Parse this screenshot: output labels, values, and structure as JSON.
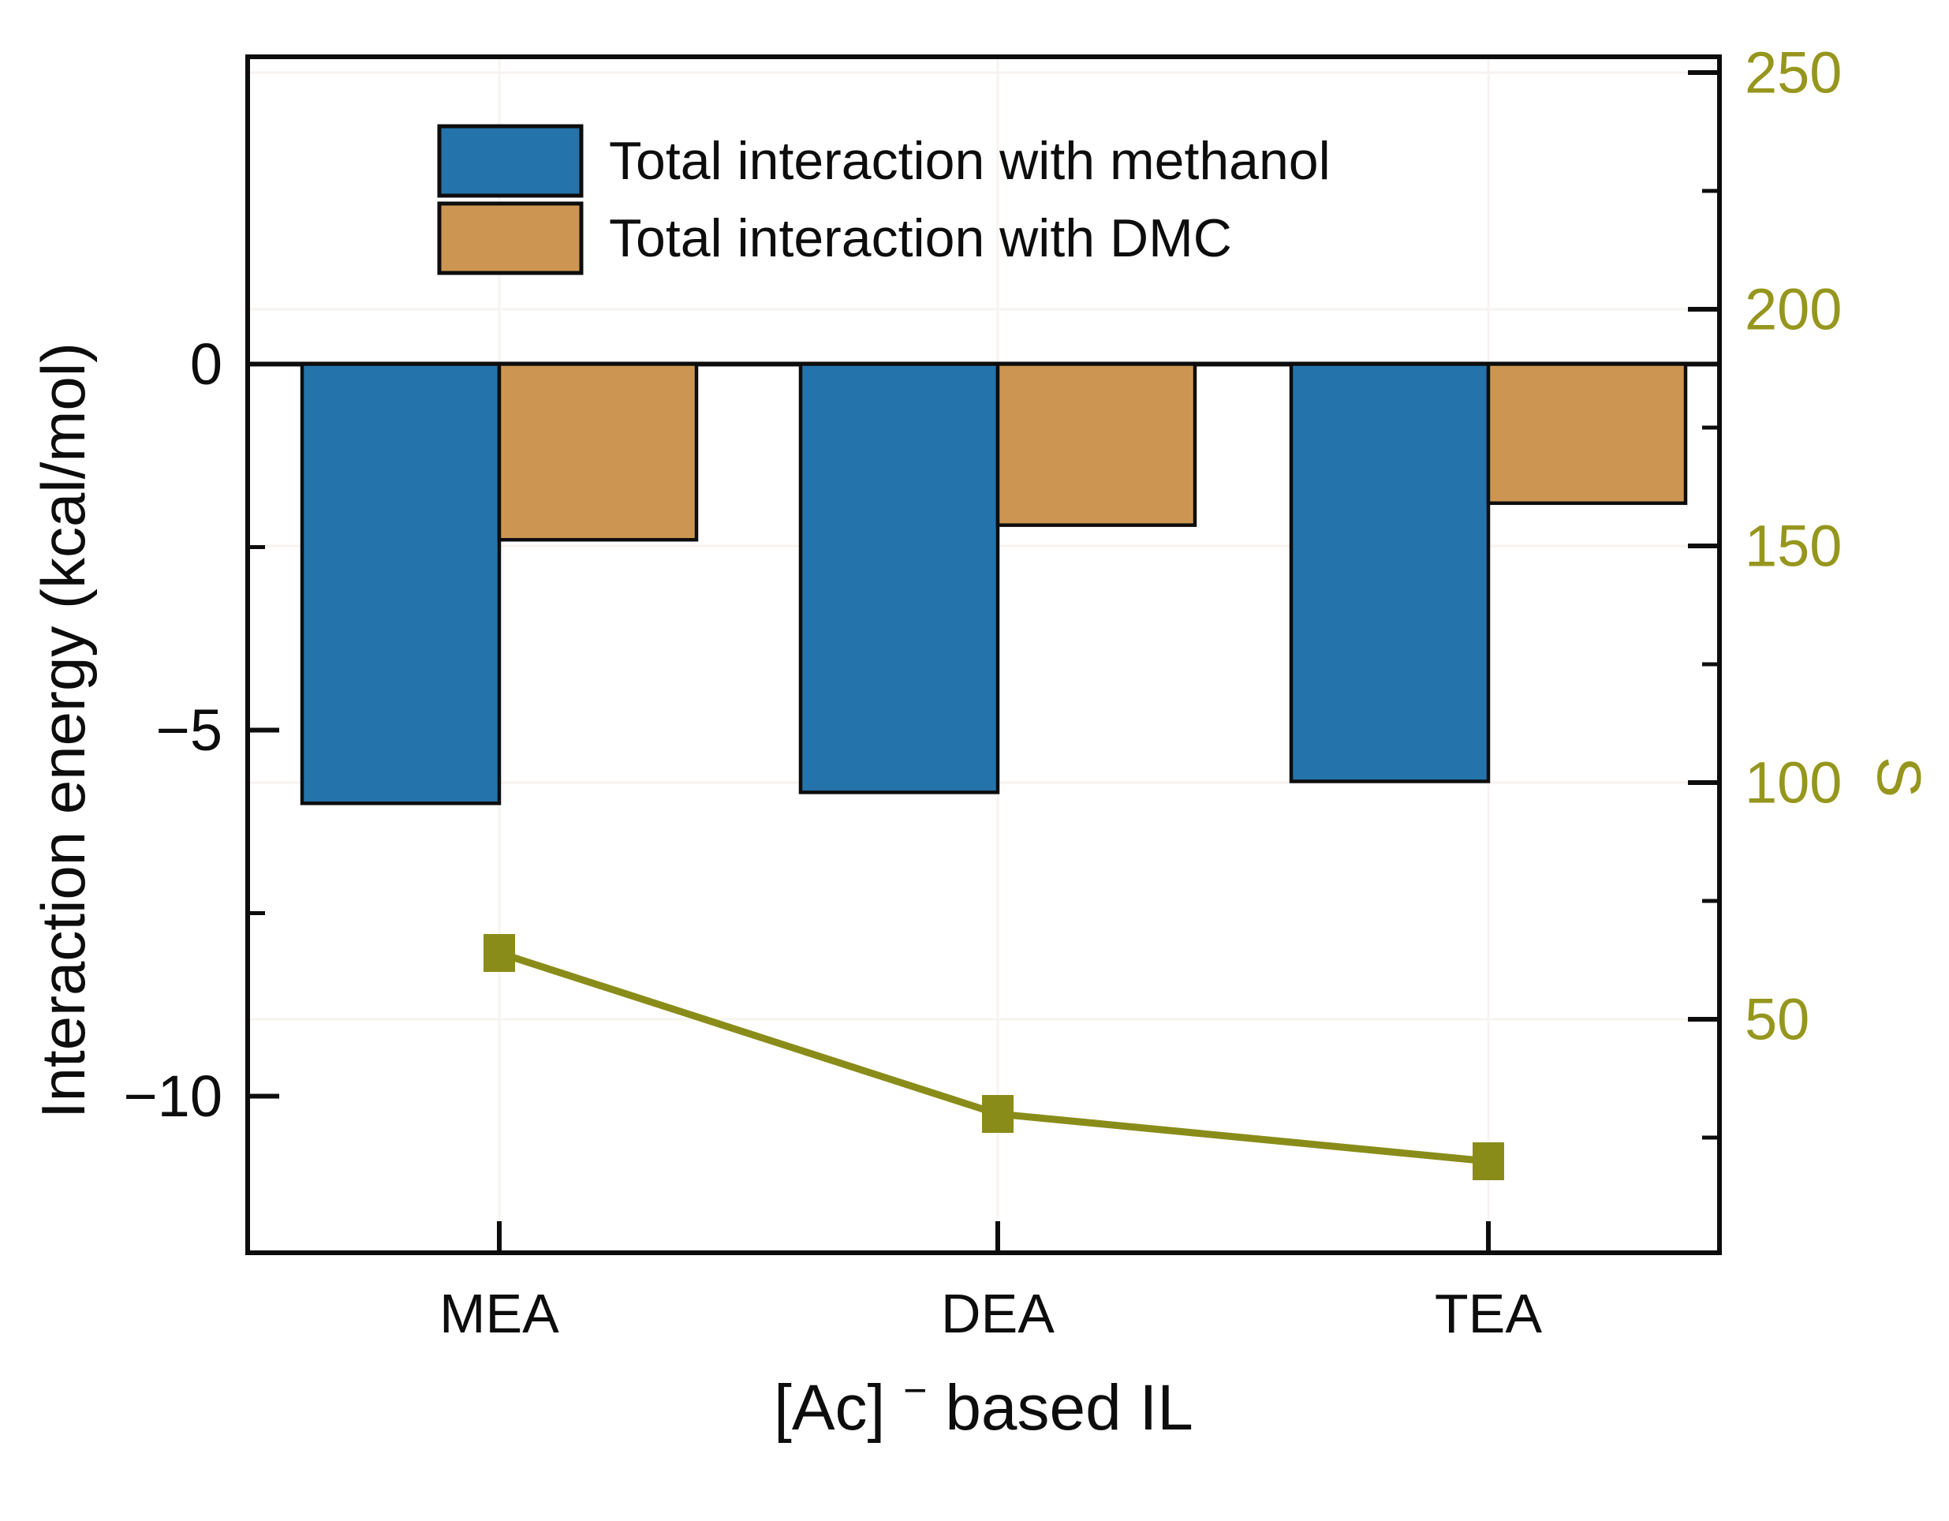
{
  "chart_data": {
    "type": "bar+line",
    "categories": [
      "MEA",
      "DEA",
      "TEA"
    ],
    "bar_series": [
      {
        "name": "Total interaction with methanol",
        "axis": "left",
        "color": "#2473aa",
        "values": [
          -6.0,
          -5.85,
          -5.7
        ]
      },
      {
        "name": "Total interaction with DMC",
        "axis": "left",
        "color": "#cc9652",
        "values": [
          -2.4,
          -2.2,
          -1.9
        ]
      }
    ],
    "line_series": {
      "name": "S",
      "axis": "right",
      "color": "#8a8c19",
      "values": [
        64,
        30,
        20
      ]
    },
    "left_axis": {
      "label": "Interaction energy (kcal/mol)",
      "tick_labels": [
        "0",
        "−5",
        "−10"
      ],
      "tick_values": [
        0,
        -5,
        -10
      ],
      "minor_tick_values": [
        -2.5,
        -7.5
      ],
      "range": [
        4.3,
        -12.2
      ],
      "color": "#000000"
    },
    "right_axis": {
      "label": "S",
      "tick_labels": [
        "250",
        "200",
        "150",
        "100",
        "50"
      ],
      "tick_values": [
        250,
        200,
        150,
        100,
        50
      ],
      "minor_tick_values": [
        225,
        175,
        125,
        75,
        25
      ],
      "range": [
        255,
        0.7
      ],
      "color": "#96961e"
    },
    "x_axis": {
      "label_base": "[Ac]",
      "label_sup": "−",
      "label_rest": " based IL",
      "categories": [
        "MEA",
        "DEA",
        "TEA"
      ]
    },
    "legend": [
      {
        "label": "Total interaction with methanol",
        "color": "#2473aa"
      },
      {
        "label": "Total interaction with DMC",
        "color": "#cc9652"
      }
    ],
    "grid": "faint",
    "legend_position": "inside-top-left"
  },
  "colors": {
    "bar_blue": "#2473aa",
    "bar_tan": "#cc9652",
    "line_olive": "#8a8c19",
    "right_axis_text": "#96961e",
    "axis_black": "#0d0d0d",
    "gridline": "#f7f3f0",
    "background": "#ffffff"
  }
}
